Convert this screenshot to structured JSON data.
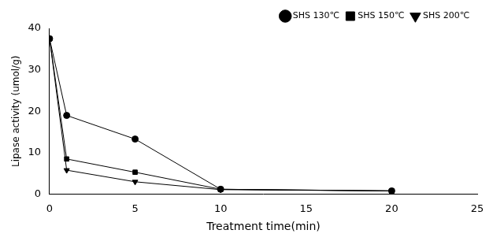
{
  "chart_data": {
    "type": "line",
    "x_label": "Treatment time(min)",
    "y_label": "Lipase activity (umol/g)",
    "x": [
      0,
      1,
      5,
      10,
      20
    ],
    "series": [
      {
        "name": "SHS 130℃",
        "color": "#000000",
        "marker": "circle",
        "values": [
          37.5,
          19.0,
          13.3,
          1.2,
          0.8
        ]
      },
      {
        "name": "SHS 150℃",
        "color": "#000000",
        "marker": "square",
        "values": [
          37.5,
          8.5,
          5.3,
          1.2,
          0.8
        ]
      },
      {
        "name": "SHS 200℃",
        "color": "#000000",
        "marker": "triangle_down",
        "values": [
          37.5,
          5.8,
          3.0,
          1.1,
          0.8
        ]
      }
    ],
    "xlim": [
      0,
      25
    ],
    "xticks": [
      0,
      5,
      10,
      15,
      20,
      25
    ],
    "ylim": [
      0,
      40
    ],
    "yticks": [
      0,
      10,
      20,
      30,
      40
    ],
    "grid": false,
    "legend": "upper right"
  }
}
